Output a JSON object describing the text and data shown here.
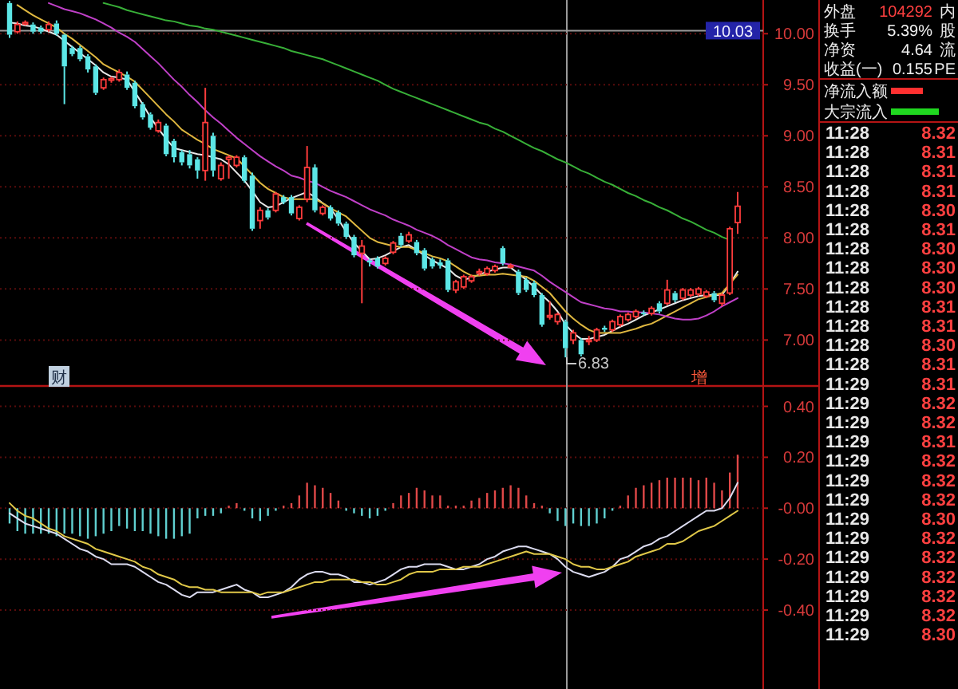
{
  "chart_data": [
    {
      "type": "candlestick",
      "categories": [
        null,
        null,
        null,
        null,
        null,
        null,
        null,
        null,
        null,
        null,
        null,
        null,
        null,
        null,
        null,
        null,
        null,
        null,
        null,
        null,
        null,
        null,
        null,
        null,
        null,
        null,
        null,
        null,
        null,
        null,
        null,
        null,
        null,
        null,
        null,
        null,
        null,
        null,
        null,
        null,
        null,
        null,
        null,
        null,
        null,
        null,
        null,
        null,
        null,
        null,
        null,
        null,
        null,
        null,
        null,
        null,
        null,
        null,
        null,
        null,
        null,
        null,
        null,
        null,
        null,
        null,
        null,
        null,
        null,
        null,
        null,
        null,
        null,
        null,
        null,
        null,
        null,
        null,
        null,
        null,
        null,
        null,
        null,
        null,
        null,
        null,
        null,
        null,
        null,
        null,
        null,
        null,
        null,
        null
      ],
      "ohlc": [
        [
          10.3,
          10.32,
          9.96,
          9.99
        ],
        [
          10.02,
          10.12,
          10.0,
          10.09
        ],
        [
          10.1,
          10.13,
          10.08,
          10.11
        ],
        [
          10.09,
          10.11,
          10.0,
          10.02
        ],
        [
          10.06,
          10.08,
          10.0,
          10.02
        ],
        [
          10.04,
          10.12,
          10.02,
          10.09
        ],
        [
          10.1,
          10.13,
          9.98,
          10.0
        ],
        [
          9.99,
          10.0,
          9.31,
          9.68
        ],
        [
          9.86,
          9.88,
          9.78,
          9.8
        ],
        [
          9.86,
          9.88,
          9.73,
          9.75
        ],
        [
          9.78,
          9.8,
          9.62,
          9.65
        ],
        [
          9.68,
          9.7,
          9.4,
          9.42
        ],
        [
          9.47,
          9.57,
          9.45,
          9.55
        ],
        [
          9.55,
          9.58,
          9.52,
          9.56
        ],
        [
          9.55,
          9.65,
          9.53,
          9.62
        ],
        [
          9.6,
          9.63,
          9.45,
          9.47
        ],
        [
          9.52,
          9.54,
          9.27,
          9.29
        ],
        [
          9.31,
          9.33,
          9.16,
          9.18
        ],
        [
          9.21,
          9.23,
          9.06,
          9.08
        ],
        [
          9.05,
          9.16,
          9.03,
          9.13
        ],
        [
          9.1,
          9.12,
          8.8,
          8.82
        ],
        [
          8.95,
          8.97,
          8.74,
          8.79
        ],
        [
          8.84,
          8.86,
          8.71,
          8.74
        ],
        [
          8.82,
          8.86,
          8.68,
          8.71
        ],
        [
          8.77,
          8.79,
          8.58,
          8.66
        ],
        [
          8.66,
          9.47,
          8.56,
          9.13
        ],
        [
          9.0,
          9.03,
          8.6,
          8.66
        ],
        [
          8.58,
          8.74,
          8.56,
          8.71
        ],
        [
          8.77,
          8.81,
          8.58,
          8.79
        ],
        [
          8.71,
          8.81,
          8.69,
          8.79
        ],
        [
          8.79,
          8.81,
          8.54,
          8.56
        ],
        [
          8.61,
          8.64,
          8.07,
          8.09
        ],
        [
          8.17,
          8.3,
          8.09,
          8.27
        ],
        [
          8.27,
          8.29,
          8.18,
          8.2
        ],
        [
          8.27,
          8.45,
          8.25,
          8.43
        ],
        [
          8.4,
          8.42,
          8.33,
          8.35
        ],
        [
          8.4,
          8.42,
          8.22,
          8.24
        ],
        [
          8.19,
          8.32,
          8.17,
          8.3
        ],
        [
          8.38,
          8.9,
          8.35,
          8.69
        ],
        [
          8.69,
          8.72,
          8.25,
          8.27
        ],
        [
          8.24,
          8.32,
          8.22,
          8.3
        ],
        [
          8.3,
          8.32,
          8.17,
          8.19
        ],
        [
          8.25,
          8.27,
          8.12,
          8.14
        ],
        [
          8.14,
          8.16,
          7.99,
          8.01
        ],
        [
          8.01,
          8.03,
          7.81,
          7.83
        ],
        [
          7.85,
          7.98,
          7.36,
          7.92
        ],
        [
          7.78,
          7.8,
          7.72,
          7.76
        ],
        [
          7.8,
          7.82,
          7.7,
          7.72
        ],
        [
          7.75,
          7.82,
          7.73,
          7.8
        ],
        [
          7.86,
          7.97,
          7.84,
          7.95
        ],
        [
          8.02,
          8.05,
          7.91,
          7.93
        ],
        [
          7.97,
          8.06,
          7.95,
          8.03
        ],
        [
          7.96,
          7.98,
          7.83,
          7.85
        ],
        [
          7.88,
          7.9,
          7.68,
          7.7
        ],
        [
          7.79,
          7.81,
          7.7,
          7.72
        ],
        [
          7.76,
          7.79,
          7.7,
          7.73
        ],
        [
          7.78,
          7.8,
          7.47,
          7.49
        ],
        [
          7.49,
          7.59,
          7.46,
          7.57
        ],
        [
          7.52,
          7.64,
          7.5,
          7.62
        ],
        [
          7.58,
          7.64,
          7.56,
          7.62
        ],
        [
          7.66,
          7.7,
          7.63,
          7.67
        ],
        [
          7.65,
          7.72,
          7.63,
          7.7
        ],
        [
          7.68,
          7.74,
          7.66,
          7.72
        ],
        [
          7.9,
          7.92,
          7.73,
          7.75
        ],
        [
          7.72,
          7.75,
          7.7,
          7.73
        ],
        [
          7.67,
          7.69,
          7.44,
          7.46
        ],
        [
          7.59,
          7.61,
          7.47,
          7.49
        ],
        [
          7.56,
          7.58,
          7.42,
          7.44
        ],
        [
          7.44,
          7.46,
          7.13,
          7.15
        ],
        [
          7.23,
          7.38,
          7.2,
          7.24
        ],
        [
          7.18,
          7.27,
          7.15,
          7.25
        ],
        [
          7.18,
          7.2,
          6.83,
          6.92
        ],
        [
          7.0,
          7.1,
          6.96,
          7.07
        ],
        [
          7.0,
          7.02,
          6.84,
          6.86
        ],
        [
          6.99,
          7.04,
          6.95,
          7.0
        ],
        [
          7.0,
          7.12,
          6.98,
          7.1
        ],
        [
          7.12,
          7.14,
          7.08,
          7.1
        ],
        [
          7.1,
          7.2,
          7.08,
          7.18
        ],
        [
          7.15,
          7.25,
          7.13,
          7.23
        ],
        [
          7.2,
          7.27,
          7.18,
          7.25
        ],
        [
          7.23,
          7.3,
          7.21,
          7.28
        ],
        [
          7.27,
          7.29,
          7.24,
          7.26
        ],
        [
          7.26,
          7.33,
          7.24,
          7.31
        ],
        [
          7.36,
          7.38,
          7.26,
          7.28
        ],
        [
          7.36,
          7.59,
          7.34,
          7.49
        ],
        [
          7.46,
          7.48,
          7.37,
          7.39
        ],
        [
          7.41,
          7.51,
          7.39,
          7.49
        ],
        [
          7.44,
          7.51,
          7.42,
          7.49
        ],
        [
          7.45,
          7.52,
          7.43,
          7.5
        ],
        [
          7.43,
          7.49,
          7.41,
          7.47
        ],
        [
          7.46,
          7.48,
          7.37,
          7.39
        ],
        [
          7.36,
          7.46,
          7.33,
          7.44
        ],
        [
          7.46,
          8.11,
          7.44,
          8.09
        ],
        [
          8.15,
          8.45,
          8.04,
          8.31
        ]
      ],
      "colors": [
        "#5ce6e6",
        "#ff3c3c",
        "#ff3c3c",
        "#5ce6e6",
        "#5ce6e6",
        "#ff3c3c",
        "#5ce6e6",
        "#5ce6e6",
        "#5ce6e6",
        "#5ce6e6",
        "#5ce6e6",
        "#5ce6e6",
        "#ff3c3c",
        "#ff3c3c",
        "#ff3c3c",
        "#5ce6e6",
        "#5ce6e6",
        "#5ce6e6",
        "#5ce6e6",
        "#ff3c3c",
        "#5ce6e6",
        "#5ce6e6",
        "#5ce6e6",
        "#5ce6e6",
        "#5ce6e6",
        "#ff3c3c",
        "#5ce6e6",
        "#ff3c3c",
        "#ff3c3c",
        "#ff3c3c",
        "#5ce6e6",
        "#5ce6e6",
        "#ff3c3c",
        "#5ce6e6",
        "#ff3c3c",
        "#5ce6e6",
        "#5ce6e6",
        "#ff3c3c",
        "#ff3c3c",
        "#5ce6e6",
        "#ff3c3c",
        "#5ce6e6",
        "#5ce6e6",
        "#5ce6e6",
        "#5ce6e6",
        "#ff3c3c",
        "#5ce6e6",
        "#5ce6e6",
        "#ff3c3c",
        "#ff3c3c",
        "#5ce6e6",
        "#ff3c3c",
        "#5ce6e6",
        "#5ce6e6",
        "#5ce6e6",
        "#5ce6e6",
        "#5ce6e6",
        "#ff3c3c",
        "#ff3c3c",
        "#ff3c3c",
        "#ff3c3c",
        "#ff3c3c",
        "#ff3c3c",
        "#5ce6e6",
        "#ff3c3c",
        "#5ce6e6",
        "#5ce6e6",
        "#5ce6e6",
        "#5ce6e6",
        "#ff3c3c",
        "#ff3c3c",
        "#5ce6e6",
        "#ff3c3c",
        "#5ce6e6",
        "#ff3c3c",
        "#ff3c3c",
        "#5ce6e6",
        "#ff3c3c",
        "#ff3c3c",
        "#ff3c3c",
        "#ff3c3c",
        "#5ce6e6",
        "#ff3c3c",
        "#5ce6e6",
        "#ff3c3c",
        "#5ce6e6",
        "#ff3c3c",
        "#ff3c3c",
        "#ff3c3c",
        "#ff3c3c",
        "#5ce6e6",
        "#ff3c3c",
        "#ff3c3c",
        "#ff3c3c"
      ],
      "series": [
        {
          "type": "line",
          "color": "#e8e8e8",
          "values": [
            10.11,
            10.1,
            10.08,
            10.07,
            10.05,
            10.02,
            9.99,
            9.93,
            9.87,
            9.81,
            9.75,
            9.69,
            9.62,
            9.58,
            9.57,
            9.55,
            9.43,
            9.31,
            9.18,
            9.07,
            8.97,
            8.88,
            8.86,
            8.84,
            8.82,
            8.81,
            8.79,
            8.77,
            8.72,
            8.64,
            8.56,
            8.46,
            8.35,
            8.3,
            8.31,
            8.35,
            8.39,
            8.42,
            8.45,
            8.4,
            8.34,
            8.29,
            8.18,
            8.06,
            7.95,
            7.87,
            7.79,
            7.8,
            7.83,
            7.87,
            7.91,
            7.93,
            7.88,
            7.83,
            7.78,
            7.74,
            7.7,
            7.63,
            7.59,
            7.61,
            7.64,
            7.67,
            7.69,
            7.71,
            7.71,
            7.65,
            7.59,
            7.52,
            7.44,
            7.37,
            7.28,
            7.15,
            7.07,
            7.01,
            7.01,
            7.03,
            7.05,
            7.09,
            7.13,
            7.16,
            7.2,
            7.24,
            7.27,
            7.3,
            7.33,
            7.36,
            7.39,
            7.41,
            7.43,
            7.44,
            7.44,
            7.44,
            7.55,
            7.67
          ]
        },
        {
          "type": "line",
          "color": "#e0b840",
          "values": [
            null,
            10.28,
            10.23,
            10.18,
            10.14,
            10.1,
            10.06,
            10.0,
            9.95,
            9.89,
            9.83,
            9.77,
            9.7,
            9.66,
            9.62,
            9.58,
            9.53,
            9.45,
            9.37,
            9.29,
            9.21,
            9.14,
            9.06,
            9.01,
            8.96,
            8.92,
            8.87,
            8.84,
            8.81,
            8.78,
            8.7,
            8.62,
            8.54,
            8.48,
            8.44,
            8.4,
            8.38,
            8.38,
            8.38,
            8.38,
            8.34,
            8.29,
            8.25,
            8.21,
            8.14,
            8.07,
            8.0,
            7.96,
            7.94,
            7.92,
            7.91,
            7.91,
            7.88,
            7.85,
            7.82,
            7.8,
            7.77,
            7.72,
            7.67,
            7.63,
            7.63,
            7.64,
            7.64,
            7.65,
            7.64,
            7.63,
            7.62,
            7.58,
            7.52,
            7.46,
            7.37,
            7.28,
            7.21,
            7.15,
            7.1,
            7.07,
            7.07,
            7.07,
            7.07,
            7.09,
            7.11,
            7.14,
            7.16,
            7.2,
            7.24,
            7.28,
            7.32,
            7.36,
            7.4,
            7.42,
            7.44,
            7.46,
            7.55,
            7.64
          ]
        },
        {
          "type": "line",
          "color": "#c040c8",
          "values": [
            null,
            null,
            null,
            null,
            null,
            10.3,
            10.27,
            10.24,
            10.22,
            10.2,
            10.17,
            10.14,
            10.1,
            10.06,
            10.01,
            9.97,
            9.92,
            9.85,
            9.78,
            9.71,
            9.63,
            9.55,
            9.48,
            9.4,
            9.33,
            9.25,
            9.18,
            9.12,
            9.05,
            8.98,
            8.92,
            8.86,
            8.8,
            8.75,
            8.7,
            8.66,
            8.61,
            8.59,
            8.56,
            8.54,
            8.5,
            8.46,
            8.43,
            8.4,
            8.36,
            8.32,
            8.28,
            8.25,
            8.22,
            8.18,
            8.15,
            8.12,
            8.08,
            8.05,
            8.02,
            7.98,
            7.93,
            7.89,
            7.85,
            7.81,
            7.79,
            7.78,
            7.76,
            7.75,
            7.74,
            7.72,
            7.7,
            7.68,
            7.63,
            7.57,
            7.52,
            7.47,
            7.42,
            7.37,
            7.35,
            7.33,
            7.31,
            7.3,
            7.28,
            7.28,
            7.27,
            7.27,
            7.26,
            7.25,
            7.23,
            7.21,
            7.2,
            7.2,
            7.21,
            7.24,
            7.28,
            7.33,
            7.37,
            7.41
          ]
        },
        {
          "type": "line",
          "color": "#38b038",
          "values": [
            null,
            null,
            null,
            null,
            null,
            null,
            null,
            null,
            null,
            null,
            null,
            null,
            10.3,
            10.28,
            10.26,
            10.23,
            10.21,
            10.19,
            10.17,
            10.15,
            10.13,
            10.12,
            10.1,
            10.08,
            10.07,
            10.05,
            10.04,
            10.02,
            10.0,
            9.98,
            9.96,
            9.94,
            9.92,
            9.9,
            9.88,
            9.86,
            9.83,
            9.81,
            9.79,
            9.77,
            9.75,
            9.72,
            9.69,
            9.66,
            9.63,
            9.6,
            9.57,
            9.54,
            9.5,
            9.46,
            9.43,
            9.4,
            9.37,
            9.34,
            9.31,
            9.28,
            9.25,
            9.22,
            9.19,
            9.16,
            9.13,
            9.11,
            9.07,
            9.04,
            9.0,
            8.96,
            8.92,
            8.88,
            8.85,
            8.81,
            8.77,
            8.74,
            8.7,
            8.66,
            8.63,
            8.59,
            8.55,
            8.52,
            8.48,
            8.44,
            8.41,
            8.37,
            8.34,
            8.3,
            8.27,
            8.23,
            8.19,
            8.16,
            8.12,
            8.08,
            8.05,
            8.01,
            7.98,
            null
          ]
        }
      ],
      "ylim": [
        6.55,
        10.33
      ],
      "yticks": [
        {
          "value": 7,
          "label": "7.00"
        },
        {
          "value": 7.5,
          "label": "7.50"
        },
        {
          "value": 8,
          "label": "8.00"
        },
        {
          "value": 8.5,
          "label": "8.50"
        },
        {
          "value": 9,
          "label": "9.00"
        },
        {
          "value": 9.5,
          "label": "9.50"
        },
        {
          "value": 10,
          "label": "10.00"
        }
      ],
      "grid": "y",
      "tick_labels": "y",
      "ref_lines": [
        {
          "axis": "y",
          "value": 10.03,
          "label": "10.03",
          "color": "#9a9a9a"
        }
      ],
      "annotations": [
        "财",
        "增",
        "6.83"
      ]
    },
    {
      "type": "bar",
      "categories": [
        null,
        null,
        null,
        null,
        null,
        null,
        null,
        null,
        null,
        null,
        null,
        null,
        null,
        null,
        null,
        null,
        null,
        null,
        null,
        null,
        null,
        null,
        null,
        null,
        null,
        null,
        null,
        null,
        null,
        null,
        null,
        null,
        null,
        null,
        null,
        null,
        null,
        null,
        null,
        null,
        null,
        null,
        null,
        null,
        null,
        null,
        null,
        null,
        null,
        null,
        null,
        null,
        null,
        null,
        null,
        null,
        null,
        null,
        null,
        null,
        null,
        null,
        null,
        null,
        null,
        null,
        null,
        null,
        null,
        null,
        null,
        null,
        null,
        null,
        null,
        null,
        null,
        null,
        null,
        null,
        null,
        null,
        null,
        null,
        null,
        null,
        null,
        null,
        null,
        null,
        null,
        null,
        null,
        null
      ],
      "series": [
        {
          "type": "bar",
          "colors": [
            "#60d0d0",
            "#60d0d0",
            "#60d0d0",
            "#60d0d0",
            "#60d0d0",
            "#60d0d0",
            "#60d0d0",
            "#60d0d0",
            "#60d0d0",
            "#60d0d0",
            "#60d0d0",
            "#60d0d0",
            "#60d0d0",
            "#60d0d0",
            "#60d0d0",
            "#60d0d0",
            "#60d0d0",
            "#60d0d0",
            "#60d0d0",
            "#60d0d0",
            "#60d0d0",
            "#60d0d0",
            "#60d0d0",
            "#60d0d0",
            "#60d0d0",
            "#60d0d0",
            "#60d0d0",
            "#60d0d0",
            "#e04848",
            "#e04848",
            "#60d0d0",
            "#60d0d0",
            "#60d0d0",
            "#60d0d0",
            "#60d0d0",
            "#e04848",
            "#e04848",
            "#e04848",
            "#e04848",
            "#e04848",
            "#e04848",
            "#e04848",
            "#e04848",
            "#60d0d0",
            "#60d0d0",
            "#60d0d0",
            "#60d0d0",
            "#60d0d0",
            "#60d0d0",
            "#e04848",
            "#e04848",
            "#e04848",
            "#e04848",
            "#e04848",
            "#e04848",
            "#e04848",
            "#e04848",
            "#e04848",
            "#e04848",
            "#e04848",
            "#e04848",
            "#e04848",
            "#e04848",
            "#e04848",
            "#e04848",
            "#e04848",
            "#e04848",
            "#e04848",
            "#e04848",
            "#60d0d0",
            "#60d0d0",
            "#60d0d0",
            "#60d0d0",
            "#60d0d0",
            "#60d0d0",
            "#60d0d0",
            "#60d0d0",
            "#60d0d0",
            "#e04848",
            "#e04848",
            "#e04848",
            "#e04848",
            "#e04848",
            "#e04848",
            "#e04848",
            "#e04848",
            "#e04848",
            "#e04848",
            "#e04848",
            "#e04848",
            "#e04848",
            "#e04848",
            "#e04848",
            "#e04848"
          ],
          "values": [
            -0.06,
            -0.09,
            -0.1,
            -0.1,
            -0.1,
            -0.1,
            -0.11,
            -0.1,
            -0.1,
            -0.11,
            -0.12,
            -0.11,
            -0.1,
            -0.09,
            -0.07,
            -0.08,
            -0.09,
            -0.09,
            -0.1,
            -0.11,
            -0.12,
            -0.12,
            -0.11,
            -0.1,
            -0.04,
            -0.03,
            -0.03,
            -0.02,
            0.01,
            0.02,
            -0.01,
            -0.04,
            -0.05,
            -0.03,
            -0.01,
            0.01,
            0.02,
            0.05,
            0.1,
            0.09,
            0.08,
            0.06,
            0.03,
            -0.01,
            -0.02,
            -0.03,
            -0.04,
            -0.03,
            -0.01,
            0.02,
            0.05,
            0.06,
            0.08,
            0.07,
            0.05,
            0.05,
            0.01,
            0.01,
            0.01,
            0.03,
            0.04,
            0.06,
            0.07,
            0.08,
            0.09,
            0.08,
            0.05,
            0.02,
            0.01,
            -0.02,
            -0.05,
            -0.07,
            -0.06,
            -0.07,
            -0.07,
            -0.06,
            -0.04,
            -0.01,
            0.01,
            0.05,
            0.08,
            0.09,
            0.1,
            0.11,
            0.12,
            0.12,
            0.12,
            0.12,
            0.11,
            0.12,
            0.1,
            0.07,
            0.14,
            0.21
          ]
        },
        {
          "type": "line",
          "color": "#dcdcf0",
          "values": [
            -0.02,
            -0.04,
            -0.06,
            -0.07,
            -0.08,
            -0.09,
            -0.1,
            -0.12,
            -0.14,
            -0.16,
            -0.17,
            -0.19,
            -0.2,
            -0.22,
            -0.22,
            -0.22,
            -0.23,
            -0.25,
            -0.27,
            -0.29,
            -0.3,
            -0.32,
            -0.34,
            -0.35,
            -0.33,
            -0.33,
            -0.33,
            -0.32,
            -0.31,
            -0.3,
            -0.32,
            -0.33,
            -0.35,
            -0.35,
            -0.34,
            -0.33,
            -0.31,
            -0.28,
            -0.26,
            -0.25,
            -0.25,
            -0.26,
            -0.26,
            -0.27,
            -0.29,
            -0.29,
            -0.3,
            -0.29,
            -0.28,
            -0.26,
            -0.24,
            -0.23,
            -0.23,
            -0.22,
            -0.22,
            -0.22,
            -0.23,
            -0.24,
            -0.24,
            -0.23,
            -0.22,
            -0.2,
            -0.19,
            -0.17,
            -0.16,
            -0.15,
            -0.15,
            -0.16,
            -0.17,
            -0.18,
            -0.2,
            -0.23,
            -0.25,
            -0.26,
            -0.27,
            -0.26,
            -0.25,
            -0.23,
            -0.2,
            -0.19,
            -0.17,
            -0.15,
            -0.14,
            -0.12,
            -0.11,
            -0.09,
            -0.07,
            -0.05,
            -0.03,
            -0.01,
            -0.01,
            0.0,
            0.04,
            0.1
          ]
        },
        {
          "type": "line",
          "color": "#e0c848",
          "values": [
            0.02,
            -0.01,
            -0.03,
            -0.04,
            -0.06,
            -0.08,
            -0.09,
            -0.11,
            -0.12,
            -0.13,
            -0.14,
            -0.16,
            -0.17,
            -0.18,
            -0.19,
            -0.2,
            -0.21,
            -0.23,
            -0.24,
            -0.26,
            -0.27,
            -0.28,
            -0.3,
            -0.31,
            -0.31,
            -0.32,
            -0.32,
            -0.33,
            -0.33,
            -0.33,
            -0.33,
            -0.33,
            -0.34,
            -0.33,
            -0.33,
            -0.33,
            -0.32,
            -0.31,
            -0.3,
            -0.29,
            -0.29,
            -0.28,
            -0.28,
            -0.28,
            -0.28,
            -0.29,
            -0.29,
            -0.3,
            -0.3,
            -0.29,
            -0.28,
            -0.26,
            -0.25,
            -0.25,
            -0.25,
            -0.24,
            -0.24,
            -0.24,
            -0.23,
            -0.23,
            -0.23,
            -0.22,
            -0.21,
            -0.2,
            -0.19,
            -0.18,
            -0.17,
            -0.18,
            -0.18,
            -0.18,
            -0.19,
            -0.2,
            -0.22,
            -0.23,
            -0.23,
            -0.24,
            -0.24,
            -0.23,
            -0.22,
            -0.21,
            -0.19,
            -0.18,
            -0.17,
            -0.16,
            -0.14,
            -0.14,
            -0.13,
            -0.11,
            -0.09,
            -0.08,
            -0.07,
            -0.05,
            -0.03,
            -0.01
          ]
        }
      ],
      "ylim": [
        -0.71,
        0.48
      ],
      "yticks": [
        {
          "value": 0.4,
          "label": "0.40"
        },
        {
          "value": 0.2,
          "label": "0.20"
        },
        {
          "value": 0,
          "label": "-0.00"
        },
        {
          "value": -0.2,
          "label": "-0.20"
        },
        {
          "value": -0.4,
          "label": "-0.40"
        }
      ],
      "grid": "y",
      "tick_labels": "y"
    },
    {
      "type": "other",
      "annotations": [
        "外盘",
        "104292",
        "内",
        "换手",
        "5.39%",
        "股",
        "净资",
        "4.64",
        "流",
        "收益(一)",
        "0.155",
        "PE",
        "净流入额",
        "大宗流入",
        "11:28",
        "8.32",
        "11:28",
        "8.31",
        "11:28",
        "8.31",
        "11:28",
        "8.31",
        "11:28",
        "8.30",
        "11:28",
        "8.31",
        "11:28",
        "8.30",
        "11:28",
        "8.30",
        "11:28",
        "8.30",
        "11:28",
        "8.31",
        "11:28",
        "8.31",
        "11:28",
        "8.30",
        "11:28",
        "8.31",
        "11:29",
        "8.31",
        "11:29",
        "8.32",
        "11:29",
        "8.32",
        "11:29",
        "8.31",
        "11:29",
        "8.32",
        "11:29",
        "8.32",
        "11:29",
        "8.32",
        "11:29",
        "8.30",
        "11:29",
        "8.32",
        "11:29",
        "8.32",
        "11:29",
        "8.32",
        "11:29",
        "8.32",
        "11:29",
        "8.32",
        "11:29",
        "8.30"
      ]
    }
  ]
}
